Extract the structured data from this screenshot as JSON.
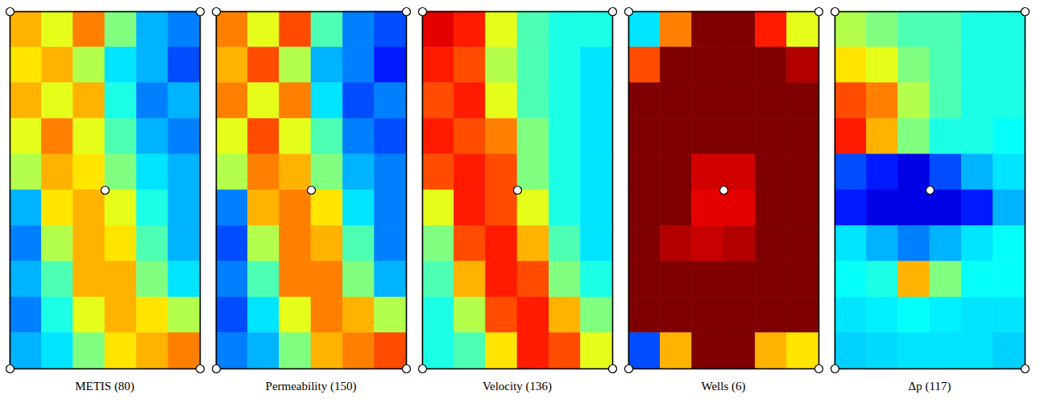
{
  "chart_data": [
    {
      "type": "heatmap",
      "title": "METIS (80)",
      "tick_labels": false,
      "wells": [
        [
          0,
          0
        ],
        [
          6,
          0
        ],
        [
          0,
          10
        ],
        [
          6,
          10
        ],
        [
          3,
          5
        ]
      ],
      "cells": [
        [
          0.7,
          0.6,
          0.75,
          0.5,
          0.3,
          0.25
        ],
        [
          0.65,
          0.7,
          0.55,
          0.35,
          0.3,
          0.2
        ],
        [
          0.7,
          0.6,
          0.7,
          0.4,
          0.25,
          0.3
        ],
        [
          0.6,
          0.75,
          0.6,
          0.45,
          0.3,
          0.25
        ],
        [
          0.55,
          0.7,
          0.65,
          0.5,
          0.35,
          0.3
        ],
        [
          0.3,
          0.65,
          0.7,
          0.6,
          0.4,
          0.3
        ],
        [
          0.25,
          0.55,
          0.7,
          0.65,
          0.45,
          0.3
        ],
        [
          0.3,
          0.45,
          0.7,
          0.7,
          0.5,
          0.35
        ],
        [
          0.25,
          0.4,
          0.6,
          0.7,
          0.65,
          0.55
        ],
        [
          0.3,
          0.35,
          0.5,
          0.65,
          0.7,
          0.75
        ]
      ]
    },
    {
      "type": "heatmap",
      "title": "Permeability (150)",
      "tick_labels": false,
      "wells": [
        [
          0,
          0
        ],
        [
          6,
          0
        ],
        [
          0,
          10
        ],
        [
          6,
          10
        ],
        [
          3,
          5
        ]
      ],
      "cells": [
        [
          0.75,
          0.6,
          0.8,
          0.45,
          0.25,
          0.2
        ],
        [
          0.7,
          0.8,
          0.55,
          0.3,
          0.25,
          0.15
        ],
        [
          0.75,
          0.6,
          0.75,
          0.35,
          0.2,
          0.25
        ],
        [
          0.6,
          0.8,
          0.6,
          0.45,
          0.25,
          0.2
        ],
        [
          0.55,
          0.75,
          0.7,
          0.5,
          0.3,
          0.25
        ],
        [
          0.25,
          0.7,
          0.75,
          0.65,
          0.35,
          0.25
        ],
        [
          0.2,
          0.55,
          0.75,
          0.7,
          0.45,
          0.25
        ],
        [
          0.25,
          0.45,
          0.75,
          0.75,
          0.5,
          0.3
        ],
        [
          0.2,
          0.35,
          0.6,
          0.75,
          0.7,
          0.55
        ],
        [
          0.25,
          0.3,
          0.5,
          0.7,
          0.75,
          0.8
        ]
      ]
    },
    {
      "type": "heatmap",
      "title": "Velocity (136)",
      "tick_labels": false,
      "wells": [
        [
          0,
          0
        ],
        [
          6,
          0
        ],
        [
          0,
          10
        ],
        [
          6,
          10
        ],
        [
          3,
          5
        ]
      ],
      "cells": [
        [
          0.9,
          0.85,
          0.6,
          0.45,
          0.4,
          0.4
        ],
        [
          0.85,
          0.8,
          0.55,
          0.45,
          0.4,
          0.35
        ],
        [
          0.8,
          0.85,
          0.6,
          0.45,
          0.4,
          0.35
        ],
        [
          0.85,
          0.8,
          0.75,
          0.5,
          0.4,
          0.35
        ],
        [
          0.8,
          0.85,
          0.8,
          0.5,
          0.4,
          0.35
        ],
        [
          0.6,
          0.85,
          0.8,
          0.6,
          0.4,
          0.35
        ],
        [
          0.5,
          0.8,
          0.85,
          0.7,
          0.45,
          0.35
        ],
        [
          0.45,
          0.7,
          0.85,
          0.8,
          0.5,
          0.4
        ],
        [
          0.4,
          0.55,
          0.8,
          0.85,
          0.7,
          0.5
        ],
        [
          0.4,
          0.45,
          0.65,
          0.85,
          0.8,
          0.6
        ]
      ]
    },
    {
      "type": "heatmap",
      "title": "Wells (6)",
      "tick_labels": false,
      "wells": [
        [
          0,
          0
        ],
        [
          6,
          0
        ],
        [
          0,
          10
        ],
        [
          6,
          10
        ],
        [
          3,
          5
        ]
      ],
      "cells": [
        [
          0.35,
          0.75,
          1,
          1,
          0.85,
          0.6
        ],
        [
          0.8,
          1,
          1,
          1,
          1,
          0.95
        ],
        [
          1,
          1,
          1,
          1,
          1,
          1
        ],
        [
          1,
          1,
          1,
          1,
          1,
          1
        ],
        [
          1,
          1,
          0.92,
          0.92,
          1,
          1
        ],
        [
          1,
          1,
          0.9,
          0.9,
          1,
          1
        ],
        [
          1,
          0.95,
          0.93,
          0.95,
          1,
          1
        ],
        [
          1,
          1,
          1,
          1,
          1,
          1
        ],
        [
          1,
          1,
          1,
          1,
          1,
          1
        ],
        [
          0.2,
          0.7,
          1,
          1,
          0.7,
          0.65
        ]
      ]
    },
    {
      "type": "heatmap",
      "title": "Δp (117)",
      "tick_labels": false,
      "wells": [
        [
          0,
          0
        ],
        [
          6,
          0
        ],
        [
          0,
          10
        ],
        [
          6,
          10
        ],
        [
          3,
          5
        ]
      ],
      "cells": [
        [
          0.55,
          0.5,
          0.45,
          0.45,
          0.4,
          0.4
        ],
        [
          0.65,
          0.6,
          0.5,
          0.45,
          0.4,
          0.4
        ],
        [
          0.8,
          0.75,
          0.55,
          0.45,
          0.4,
          0.4
        ],
        [
          0.85,
          0.7,
          0.5,
          0.4,
          0.4,
          0.38
        ],
        [
          0.2,
          0.15,
          0.1,
          0.2,
          0.3,
          0.35
        ],
        [
          0.15,
          0.1,
          0.1,
          0.1,
          0.15,
          0.3
        ],
        [
          0.35,
          0.3,
          0.25,
          0.3,
          0.35,
          0.38
        ],
        [
          0.38,
          0.4,
          0.7,
          0.5,
          0.38,
          0.38
        ],
        [
          0.35,
          0.36,
          0.38,
          0.36,
          0.35,
          0.35
        ],
        [
          0.33,
          0.34,
          0.35,
          0.35,
          0.35,
          0.33
        ]
      ]
    }
  ]
}
